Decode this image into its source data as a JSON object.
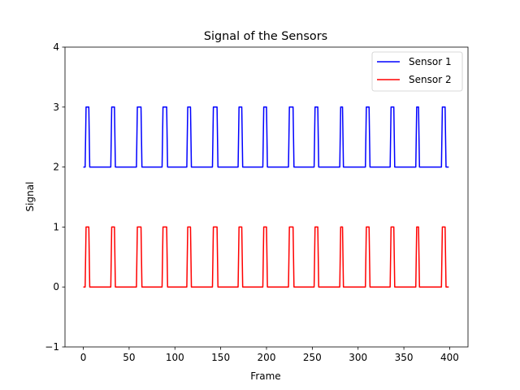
{
  "chart_data": {
    "type": "line",
    "title": "Signal of the Sensors",
    "xlabel": "Frame",
    "ylabel": "Signal",
    "xlim": [
      -20,
      420
    ],
    "ylim": [
      -1,
      4
    ],
    "xticks": [
      0,
      50,
      100,
      150,
      200,
      250,
      300,
      350,
      400
    ],
    "yticks": [
      -1,
      0,
      1,
      2,
      3,
      4
    ],
    "grid": false,
    "legend_position": "top-right",
    "series": [
      {
        "name": "Sensor 1",
        "color": "#0000ff",
        "baseline": 2,
        "peak": 3,
        "x_range": [
          0,
          399
        ],
        "pulses": [
          [
            3,
            6
          ],
          [
            31,
            34
          ],
          [
            59,
            63
          ],
          [
            87,
            91
          ],
          [
            114,
            117
          ],
          [
            142,
            146
          ],
          [
            170,
            173
          ],
          [
            197,
            200
          ],
          [
            225,
            229
          ],
          [
            253,
            256
          ],
          [
            281,
            283
          ],
          [
            309,
            312
          ],
          [
            336,
            339
          ],
          [
            364,
            366
          ],
          [
            392,
            395
          ]
        ]
      },
      {
        "name": "Sensor 2",
        "color": "#ff0000",
        "baseline": 0,
        "peak": 1,
        "x_range": [
          0,
          399
        ],
        "pulses": [
          [
            3,
            6
          ],
          [
            31,
            34
          ],
          [
            59,
            63
          ],
          [
            87,
            91
          ],
          [
            114,
            117
          ],
          [
            142,
            146
          ],
          [
            170,
            173
          ],
          [
            197,
            200
          ],
          [
            225,
            229
          ],
          [
            253,
            256
          ],
          [
            281,
            283
          ],
          [
            309,
            312
          ],
          [
            336,
            339
          ],
          [
            364,
            366
          ],
          [
            392,
            395
          ]
        ]
      }
    ]
  }
}
